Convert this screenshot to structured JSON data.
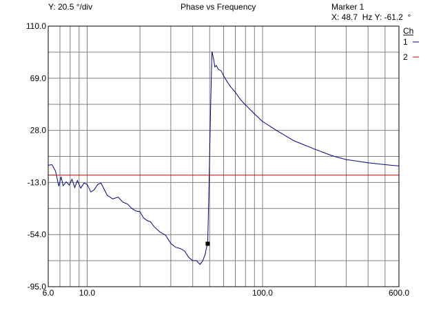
{
  "header": {
    "y_scale": "Y: 20.5 °/div",
    "title": "Phase vs Frequency",
    "marker_title": "Marker 1",
    "marker_readout": "X: 48.7  Hz Y: -61.2  °"
  },
  "legend": {
    "heading": "Ch",
    "items": [
      {
        "label": "1",
        "color": "#000080"
      },
      {
        "label": "2",
        "color": "#c00000"
      }
    ]
  },
  "chart_data": {
    "type": "line",
    "x_scale": "log",
    "xlim": [
      6,
      600
    ],
    "ylim": [
      -95,
      110
    ],
    "x_tick_labels": [
      {
        "value": 6,
        "label": "6.0"
      },
      {
        "value": 10,
        "label": "10.0"
      },
      {
        "value": 100,
        "label": "100.0"
      },
      {
        "value": 600,
        "label": "600.0"
      }
    ],
    "x_gridlines": [
      6,
      7,
      8,
      9,
      10,
      20,
      30,
      40,
      50,
      60,
      70,
      80,
      90,
      100,
      200,
      300,
      400,
      500,
      600
    ],
    "y_ticks": [
      110,
      69,
      28,
      -13,
      -54,
      -95
    ],
    "y_tick_labels": [
      "110.0",
      "69.0",
      "28.0",
      "-13.0",
      "-54.0",
      "-95.0"
    ],
    "grid": true,
    "legend_position": "top-right",
    "marker": {
      "x": 48.7,
      "y": -61.2
    },
    "series": [
      {
        "name": "1",
        "color": "#000080",
        "x": [
          6.0,
          6.3,
          6.6,
          6.9,
          7.1,
          7.3,
          7.6,
          7.9,
          8.2,
          8.5,
          8.8,
          9.2,
          9.6,
          10.0,
          10.5,
          11.0,
          11.5,
          12.0,
          13.0,
          14.0,
          15.0,
          16.0,
          17.0,
          18.0,
          19.0,
          20.0,
          21.0,
          22.0,
          23.0,
          24.0,
          26.0,
          28.0,
          30.0,
          32.0,
          34.0,
          36.0,
          38.0,
          40.0,
          42.0,
          44.0,
          45.5,
          47.0,
          48.0,
          48.7,
          49.5,
          50.5,
          51.5,
          52.5,
          53.5,
          54.5,
          56.0,
          58.0,
          60.0,
          63.0,
          66.0,
          70.0,
          75.0,
          80.0,
          90.0,
          100.0,
          120.0,
          150.0,
          200.0,
          250.0,
          300.0,
          400.0,
          500.0,
          600.0
        ],
        "y": [
          0.5,
          1.0,
          -4.0,
          -16.0,
          -8.5,
          -15.5,
          -12.5,
          -15.0,
          -10.5,
          -17.0,
          -11.5,
          -17.5,
          -13.5,
          -14.5,
          -20.5,
          -18.5,
          -14.5,
          -13.5,
          -23.0,
          -26.0,
          -24.5,
          -28.5,
          -30.0,
          -33.5,
          -35.5,
          -36.0,
          -41.0,
          -43.0,
          -44.0,
          -47.5,
          -52.0,
          -54.5,
          -61.0,
          -64.0,
          -65.0,
          -67.0,
          -72.0,
          -74.5,
          -74.5,
          -77.5,
          -75.0,
          -70.0,
          -64.0,
          -61.2,
          -20.0,
          40.0,
          90.0,
          85.0,
          78.0,
          79.0,
          76.0,
          75.0,
          71.0,
          66.0,
          62.0,
          58.0,
          52.0,
          48.0,
          41.0,
          35.0,
          28.0,
          20.0,
          13.0,
          8.0,
          5.0,
          2.5,
          1.0,
          0.0
        ]
      },
      {
        "name": "2",
        "color": "#c00000",
        "x": [
          6.0,
          600.0
        ],
        "y": [
          -7.2,
          -7.2
        ]
      }
    ]
  }
}
